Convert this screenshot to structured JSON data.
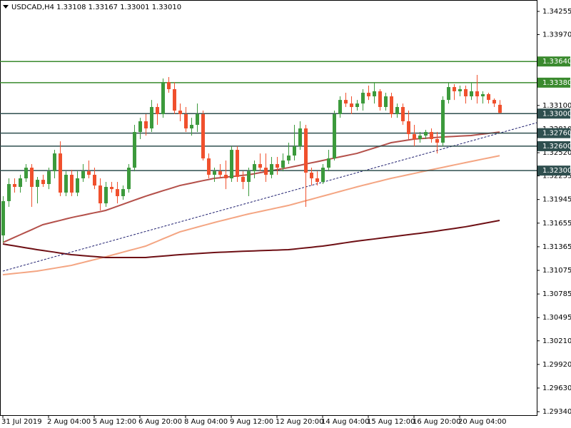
{
  "chart_data": {
    "type": "candlestick",
    "title": "USDCAD,H4  1.33108 1.33167 1.33001 1.33010",
    "categories": [
      "31 Jul 2019",
      null,
      null,
      null,
      null,
      null,
      null,
      null,
      "2 Aug 04:00",
      null,
      null,
      null,
      null,
      null,
      null,
      null,
      "5 Aug 12:00",
      null,
      null,
      null,
      null,
      null,
      null,
      null,
      "6 Aug 20:00",
      null,
      null,
      null,
      null,
      null,
      null,
      null,
      "8 Aug 04:00",
      null,
      null,
      null,
      null,
      null,
      null,
      null,
      "9 Aug 12:00",
      null,
      null,
      null,
      null,
      null,
      null,
      null,
      "12 Aug 20:00",
      null,
      null,
      null,
      null,
      null,
      null,
      null,
      "14 Aug 04:00",
      null,
      null,
      null,
      null,
      null,
      null,
      null,
      "15 Aug 12:00",
      null,
      null,
      null,
      null,
      null,
      null,
      null,
      "16 Aug 20:00",
      null,
      null,
      null,
      null,
      null,
      null,
      null,
      "20 Aug 04:00",
      null,
      null,
      null,
      null,
      null,
      null,
      null
    ],
    "open": [
      1.31504,
      1.31925,
      1.32135,
      1.321,
      1.32205,
      1.32336,
      1.321,
      1.32187,
      1.32135,
      1.32292,
      1.32511,
      1.3203,
      1.32249,
      1.3203,
      1.32205,
      1.32292,
      1.32249,
      1.32117,
      1.31898,
      1.321,
      1.32073,
      1.31986,
      1.32073,
      1.32336,
      1.32774,
      1.32906,
      1.32818,
      1.33081,
      1.32993,
      1.33387,
      1.333,
      1.33037,
      1.32993,
      1.32818,
      1.32862,
      1.32993,
      1.3245,
      1.32249,
      1.32292,
      1.32249,
      1.32205,
      1.32555,
      1.32223,
      1.32161,
      1.32292,
      1.3238,
      1.32336,
      1.32249,
      1.3238,
      1.32336,
      1.32424,
      1.32485,
      1.32599,
      1.32818,
      1.32275,
      1.32205,
      1.32161,
      1.32336,
      1.3245,
      1.32993,
      1.33168,
      1.33124,
      1.33081,
      1.33124,
      1.33256,
      1.33212,
      1.33274,
      1.33081,
      1.33212,
      1.32993,
      1.33081,
      1.32906,
      1.32748,
      1.32687,
      1.3273,
      1.32774,
      1.32687,
      1.32643,
      1.33168,
      1.33326,
      1.33274,
      1.333,
      1.33212,
      1.33274,
      1.33212,
      1.33239,
      1.33168,
      1.33108
    ],
    "high": [
      1.31986,
      1.32205,
      1.32205,
      1.32249,
      1.3238,
      1.3238,
      1.32223,
      1.32249,
      1.32336,
      1.32555,
      1.3266,
      1.32292,
      1.3231,
      1.32292,
      1.3238,
      1.32424,
      1.32336,
      1.32205,
      1.32161,
      1.32161,
      1.32161,
      1.32117,
      1.3238,
      1.32862,
      1.32949,
      1.32993,
      1.33168,
      1.33124,
      1.33431,
      1.33449,
      1.33387,
      1.33124,
      1.33081,
      1.32949,
      1.33124,
      1.33037,
      1.32511,
      1.32336,
      1.3238,
      1.32424,
      1.32599,
      1.32599,
      1.32292,
      1.32336,
      1.32424,
      1.32511,
      1.32511,
      1.32468,
      1.32468,
      1.32511,
      1.32643,
      1.32862,
      1.32906,
      1.32862,
      1.32336,
      1.32292,
      1.3238,
      1.32555,
      1.33037,
      1.33212,
      1.33256,
      1.33212,
      1.33168,
      1.333,
      1.33344,
      1.33387,
      1.333,
      1.33256,
      1.33256,
      1.33124,
      1.33124,
      1.33037,
      1.32862,
      1.32774,
      1.32801,
      1.32818,
      1.32774,
      1.33212,
      1.33387,
      1.33361,
      1.33344,
      1.33344,
      1.33387,
      1.33475,
      1.33274,
      1.33256,
      1.33186,
      1.33167
    ],
    "low": [
      1.31417,
      1.31855,
      1.3203,
      1.3203,
      1.32161,
      1.31855,
      1.31898,
      1.321,
      1.32073,
      1.32205,
      1.31986,
      1.31986,
      1.31986,
      1.31986,
      1.32161,
      1.32205,
      1.32073,
      1.31811,
      1.31855,
      1.3203,
      1.31898,
      1.31942,
      1.3203,
      1.32292,
      1.32687,
      1.3273,
      1.32774,
      1.32862,
      1.32949,
      1.33256,
      1.32993,
      1.32906,
      1.32774,
      1.3273,
      1.32774,
      1.32424,
      1.32205,
      1.32161,
      1.32205,
      1.32073,
      1.32161,
      1.32161,
      1.32073,
      1.31986,
      1.32205,
      1.32292,
      1.32161,
      1.32205,
      1.32249,
      1.32292,
      1.3238,
      1.32424,
      1.32555,
      1.31855,
      1.32117,
      1.32117,
      1.32135,
      1.32292,
      1.32424,
      1.32949,
      1.33081,
      1.32993,
      1.33037,
      1.33037,
      1.33168,
      1.33124,
      1.33037,
      1.33037,
      1.32949,
      1.32949,
      1.32862,
      1.32687,
      1.32599,
      1.32643,
      1.32687,
      1.32643,
      1.32511,
      1.32599,
      1.33124,
      1.33168,
      1.33212,
      1.33124,
      1.33168,
      1.33124,
      1.33124,
      1.33124,
      1.33081,
      1.33001
    ],
    "close": [
      1.31925,
      1.32135,
      1.321,
      1.32205,
      1.32336,
      1.321,
      1.32187,
      1.32135,
      1.32292,
      1.32511,
      1.3203,
      1.32249,
      1.3203,
      1.32205,
      1.32292,
      1.32249,
      1.32117,
      1.31898,
      1.321,
      1.32073,
      1.31986,
      1.32073,
      1.32336,
      1.32774,
      1.32906,
      1.32818,
      1.33081,
      1.32993,
      1.33387,
      1.333,
      1.33037,
      1.32993,
      1.32818,
      1.32862,
      1.32993,
      1.3245,
      1.32249,
      1.32292,
      1.32249,
      1.32205,
      1.32555,
      1.32223,
      1.32161,
      1.32292,
      1.3238,
      1.32336,
      1.32249,
      1.3238,
      1.32336,
      1.32424,
      1.32485,
      1.32599,
      1.32818,
      1.32275,
      1.32205,
      1.32161,
      1.32336,
      1.3245,
      1.32993,
      1.33168,
      1.33124,
      1.33081,
      1.33124,
      1.33256,
      1.33212,
      1.33274,
      1.33081,
      1.33212,
      1.32993,
      1.33081,
      1.32906,
      1.32748,
      1.32687,
      1.3273,
      1.32774,
      1.32687,
      1.32643,
      1.33168,
      1.33326,
      1.33274,
      1.333,
      1.33212,
      1.33274,
      1.33212,
      1.33239,
      1.33168,
      1.33124,
      1.3301
    ],
    "up_color": "#3c9a3c",
    "down_color": "#f0502d",
    "lines": [
      {
        "color": "#b4504a",
        "values": [
          1.31417,
          1.31448,
          1.3148,
          1.31511,
          1.31542,
          1.31573,
          1.31605,
          1.31636,
          1.31653,
          1.31671,
          1.31688,
          1.31706,
          1.31723,
          1.31738,
          1.31752,
          1.31767,
          1.31782,
          1.31796,
          1.31811,
          1.31836,
          1.31861,
          1.31886,
          1.31911,
          1.31936,
          1.31961,
          1.31986,
          1.32008,
          1.3203,
          1.32052,
          1.32073,
          1.32095,
          1.32117,
          1.32132,
          1.32146,
          1.32161,
          1.32176,
          1.3219,
          1.32205,
          1.32212,
          1.3222,
          1.32227,
          1.32234,
          1.32242,
          1.32249,
          1.32261,
          1.32274,
          1.32286,
          1.32299,
          1.32311,
          1.32324,
          1.32336,
          1.32351,
          1.32365,
          1.3238,
          1.32395,
          1.32409,
          1.32424,
          1.32439,
          1.32453,
          1.32468,
          1.32482,
          1.32497,
          1.32511,
          1.32533,
          1.32555,
          1.32577,
          1.32599,
          1.32621,
          1.32643,
          1.32654,
          1.32665,
          1.32676,
          1.32687,
          1.32692,
          1.32697,
          1.32703,
          1.32708,
          1.32713,
          1.32717,
          1.3272,
          1.32724,
          1.32727,
          1.32731,
          1.3274,
          1.32748,
          1.32757,
          1.32765,
          1.32774
        ]
      },
      {
        "color": "#f4a582",
        "values": [
          1.31022,
          1.31029,
          1.31037,
          1.31044,
          1.31051,
          1.31059,
          1.31066,
          1.31078,
          1.31089,
          1.31101,
          1.31113,
          1.31124,
          1.31136,
          1.31154,
          1.31171,
          1.31189,
          1.31206,
          1.31224,
          1.31241,
          1.3126,
          1.31279,
          1.31298,
          1.31317,
          1.31335,
          1.31354,
          1.31373,
          1.31402,
          1.31431,
          1.31461,
          1.3149,
          1.31519,
          1.31548,
          1.31567,
          1.31586,
          1.31605,
          1.31624,
          1.31643,
          1.31662,
          1.3168,
          1.31697,
          1.31715,
          1.31732,
          1.3175,
          1.31767,
          1.31782,
          1.31797,
          1.31812,
          1.31827,
          1.31842,
          1.31857,
          1.31872,
          1.31891,
          1.3191,
          1.31929,
          1.31948,
          1.31967,
          1.31986,
          1.32005,
          1.32024,
          1.32043,
          1.32062,
          1.32081,
          1.321,
          1.32118,
          1.32135,
          1.32153,
          1.3217,
          1.32188,
          1.32205,
          1.3222,
          1.32235,
          1.3225,
          1.32265,
          1.3228,
          1.32295,
          1.3231,
          1.32325,
          1.32339,
          1.32354,
          1.32369,
          1.32383,
          1.32398,
          1.32412,
          1.32426,
          1.32441,
          1.32455,
          1.32469,
          1.32483
        ]
      },
      {
        "color": "#6e0f14",
        "values": [
          1.31399,
          1.31387,
          1.31376,
          1.31364,
          1.31352,
          1.31341,
          1.31329,
          1.31319,
          1.31309,
          1.31299,
          1.31288,
          1.31278,
          1.31268,
          1.31262,
          1.31256,
          1.3125,
          1.31245,
          1.31239,
          1.31233,
          1.31233,
          1.31233,
          1.31233,
          1.31233,
          1.31233,
          1.31233,
          1.31233,
          1.31239,
          1.31245,
          1.3125,
          1.31256,
          1.31262,
          1.31268,
          1.31272,
          1.31277,
          1.31281,
          1.31285,
          1.3129,
          1.31294,
          1.31297,
          1.313,
          1.31303,
          1.31306,
          1.31309,
          1.31312,
          1.31314,
          1.31317,
          1.31319,
          1.31322,
          1.31324,
          1.31327,
          1.31329,
          1.31336,
          1.31344,
          1.31351,
          1.31358,
          1.31366,
          1.31373,
          1.31383,
          1.31393,
          1.31404,
          1.31414,
          1.31424,
          1.31434,
          1.31443,
          1.31452,
          1.3146,
          1.31469,
          1.31478,
          1.31487,
          1.31496,
          1.31504,
          1.31513,
          1.31522,
          1.3153,
          1.31539,
          1.31548,
          1.31558,
          1.31569,
          1.31579,
          1.31589,
          1.316,
          1.3161,
          1.31623,
          1.31636,
          1.31649,
          1.31662,
          1.31675,
          1.31688
        ]
      }
    ],
    "trendline": [
      1.31066,
      1.32888
    ],
    "trendline_color": "#1e1e6e",
    "levels": [
      {
        "value": 1.3364,
        "label": "1.33640",
        "color": "#3a8a2e"
      },
      {
        "value": 1.3338,
        "label": "1.33380",
        "color": "#3a8a2e"
      },
      {
        "value": 1.33,
        "label": "1.33000",
        "color": "#2f4f4f"
      },
      {
        "value": 1.3276,
        "label": "1.32760",
        "color": "#2f4f4f"
      },
      {
        "value": 1.326,
        "label": "1.32600",
        "color": "#2f4f4f"
      },
      {
        "value": 1.323,
        "label": "1.32300",
        "color": "#2f4f4f"
      }
    ],
    "ylim": [
      1.29297,
      1.34395
    ],
    "yticks": [
      1.34255,
      {
        "value": 1.3397,
        "label": "1.33970"
      },
      {
        "value": 1.331,
        "label": "1.33100"
      },
      {
        "value": 1.3281,
        "label": "1.32810"
      },
      {
        "value": 1.3252,
        "label": "1.32520"
      },
      1.32235,
      1.31945,
      1.31655,
      1.31365,
      1.31075,
      1.30785,
      1.30495,
      {
        "value": 1.3021,
        "label": "1.30210"
      },
      {
        "value": 1.2992,
        "label": "1.29920"
      },
      {
        "value": 1.2963,
        "label": "1.29630"
      },
      {
        "value": 1.2934,
        "label": "1.29340"
      }
    ]
  }
}
